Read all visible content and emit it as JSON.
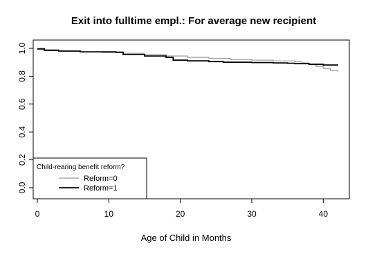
{
  "chart_data": {
    "type": "line",
    "title": "Exit into fulltime empl.: For average new recipient",
    "xlabel": "Age of Child in Months",
    "ylabel": "",
    "xlim": [
      0,
      42
    ],
    "ylim": [
      0,
      1
    ],
    "x_ticks": [
      0,
      10,
      20,
      30,
      40
    ],
    "y_ticks": [
      0.0,
      0.2,
      0.4,
      0.6,
      0.8,
      1.0
    ],
    "x_tick_labels": [
      "0",
      "10",
      "20",
      "30",
      "40"
    ],
    "y_tick_labels": [
      "0.0",
      "0.2",
      "0.4",
      "0.6",
      "0.8",
      "1.0"
    ],
    "grid": false,
    "legend": {
      "title": "Child-rearing benefit reform?",
      "placement": "bottom-left"
    },
    "series": [
      {
        "name": "Reform=0",
        "color": "#9a9a9a",
        "step": true,
        "x": [
          0,
          1,
          3,
          6,
          9,
          12,
          15,
          18,
          21,
          24,
          27,
          30,
          33,
          36,
          37,
          38,
          39,
          40,
          41,
          42
        ],
        "y": [
          1.0,
          0.99,
          0.98,
          0.975,
          0.97,
          0.965,
          0.955,
          0.945,
          0.935,
          0.928,
          0.92,
          0.915,
          0.91,
          0.905,
          0.895,
          0.885,
          0.87,
          0.855,
          0.84,
          0.83
        ]
      },
      {
        "name": "Reform=1",
        "color": "#000000",
        "step": true,
        "x": [
          0,
          1,
          3,
          6,
          11,
          12,
          15,
          18,
          19,
          21,
          24,
          26,
          30,
          33,
          35,
          36,
          38,
          40,
          42
        ],
        "y": [
          0.995,
          0.985,
          0.98,
          0.975,
          0.972,
          0.955,
          0.945,
          0.935,
          0.915,
          0.91,
          0.905,
          0.9,
          0.898,
          0.895,
          0.893,
          0.89,
          0.885,
          0.88,
          0.875
        ]
      }
    ]
  }
}
